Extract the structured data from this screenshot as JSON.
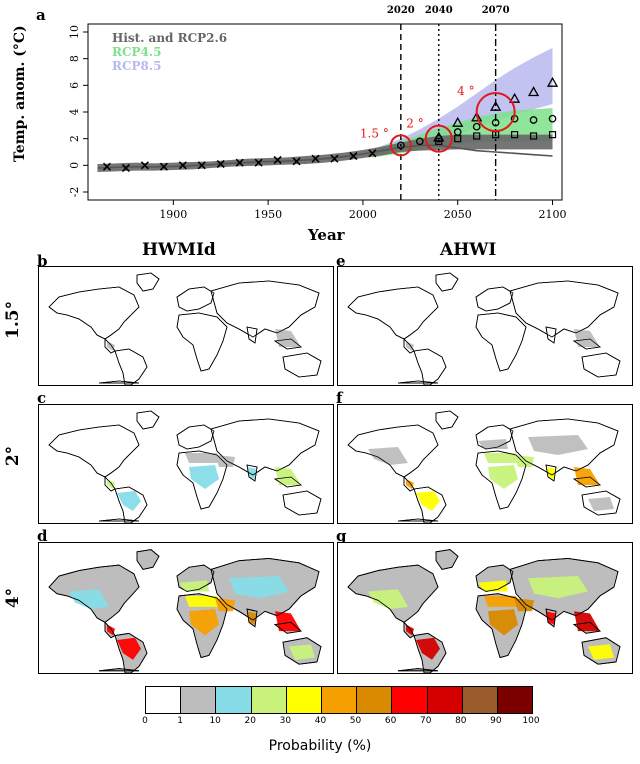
{
  "panel_labels": {
    "a": "a",
    "b": "b",
    "c": "c",
    "d": "d",
    "e": "e",
    "f": "f",
    "g": "g"
  },
  "column_titles": {
    "left": "HWMId",
    "right": "AHWI"
  },
  "row_titles": {
    "r1": "1.5°",
    "r2": "2°",
    "r3": "4°"
  },
  "chart_data": {
    "type": "line",
    "xlabel": "Year",
    "ylabel": "Temp. anom. (°C)",
    "xlim": [
      1855,
      2105
    ],
    "ylim": [
      -2.6,
      10.6
    ],
    "xticks": [
      1900,
      1950,
      2000,
      2050,
      2100
    ],
    "yticks": [
      -2,
      0,
      2,
      4,
      6,
      8,
      10
    ],
    "legend": {
      "placement": "top-left",
      "entries": [
        {
          "label": "Hist. and RCP2.6",
          "color": "#666666"
        },
        {
          "label": "RCP4.5",
          "color": "#7de08a"
        },
        {
          "label": "RCP8.5",
          "color": "#b8b8f0"
        }
      ]
    },
    "vlines": [
      {
        "x": 2020,
        "label": "2020",
        "style": "dashed"
      },
      {
        "x": 2040,
        "label": "2040",
        "style": "dotted"
      },
      {
        "x": 2070,
        "label": "2070",
        "style": "dashdot"
      }
    ],
    "circles": [
      {
        "x": 2020,
        "y": 1.5,
        "label": "1.5 °"
      },
      {
        "x": 2040,
        "y": 2.0,
        "label": "2 °"
      },
      {
        "x": 2070,
        "y": 4.0,
        "label": "4 °"
      }
    ],
    "series": [
      {
        "name": "Hist. and RCP2.6",
        "x": [
          1860,
          1870,
          1880,
          1890,
          1900,
          1910,
          1920,
          1930,
          1940,
          1950,
          1960,
          1970,
          1980,
          1990,
          2000,
          2010,
          2020,
          2030,
          2040,
          2050,
          2060,
          2070,
          2080,
          2090,
          2100
        ],
        "lower": [
          -0.5,
          -0.45,
          -0.4,
          -0.4,
          -0.35,
          -0.3,
          -0.2,
          -0.1,
          -0.05,
          0.0,
          0.05,
          0.1,
          0.2,
          0.35,
          0.55,
          0.75,
          1.0,
          1.1,
          1.15,
          1.2,
          1.2,
          1.2,
          1.2,
          1.2,
          1.2
        ],
        "upper": [
          0.1,
          0.15,
          0.2,
          0.15,
          0.2,
          0.25,
          0.3,
          0.4,
          0.5,
          0.55,
          0.6,
          0.7,
          0.8,
          0.95,
          1.15,
          1.4,
          1.7,
          2.0,
          2.2,
          2.3,
          2.3,
          2.3,
          2.3,
          2.3,
          2.3
        ],
        "mean": [
          -0.2,
          -0.15,
          -0.1,
          -0.12,
          -0.08,
          -0.02,
          0.05,
          0.15,
          0.22,
          0.28,
          0.32,
          0.4,
          0.5,
          0.65,
          0.85,
          1.1,
          1.35,
          1.5,
          1.5,
          1.3,
          1.1,
          1.0,
          0.9,
          0.8,
          0.7
        ]
      },
      {
        "name": "RCP4.5",
        "x": [
          2005,
          2020,
          2030,
          2040,
          2050,
          2060,
          2070,
          2080,
          2090,
          2100
        ],
        "lower": [
          0.6,
          0.9,
          1.2,
          1.4,
          1.6,
          1.7,
          1.8,
          1.8,
          1.8,
          1.8
        ],
        "upper": [
          1.2,
          1.8,
          2.3,
          2.8,
          3.2,
          3.6,
          3.9,
          4.1,
          4.2,
          4.3
        ]
      },
      {
        "name": "RCP8.5",
        "x": [
          2005,
          2020,
          2030,
          2040,
          2050,
          2060,
          2070,
          2080,
          2090,
          2100
        ],
        "lower": [
          0.6,
          1.0,
          1.4,
          1.8,
          2.3,
          2.8,
          3.3,
          3.8,
          4.2,
          4.6
        ],
        "upper": [
          1.2,
          2.0,
          2.7,
          3.5,
          4.4,
          5.4,
          6.4,
          7.3,
          8.1,
          8.8
        ]
      }
    ],
    "markers": {
      "cross": {
        "x": [
          1865,
          1875,
          1885,
          1895,
          1905,
          1915,
          1925,
          1935,
          1945,
          1955,
          1965,
          1975,
          1985,
          1995,
          2005
        ],
        "y": [
          -0.1,
          -0.2,
          0.0,
          -0.1,
          0.0,
          0.0,
          0.1,
          0.2,
          0.2,
          0.4,
          0.3,
          0.5,
          0.5,
          0.7,
          0.9
        ]
      },
      "triangle": {
        "x": [
          2040,
          2050,
          2060,
          2070,
          2080,
          2090,
          2100
        ],
        "y": [
          2.1,
          3.2,
          3.6,
          4.4,
          5.0,
          5.5,
          6.2
        ]
      },
      "circle": {
        "x": [
          2020,
          2030,
          2040,
          2050,
          2060,
          2070,
          2080,
          2090,
          2100
        ],
        "y": [
          1.5,
          1.8,
          2.0,
          2.5,
          2.9,
          3.2,
          3.5,
          3.4,
          3.5
        ]
      },
      "square": {
        "x": [
          2040,
          2050,
          2060,
          2070,
          2080,
          2090,
          2100
        ],
        "y": [
          1.8,
          2.0,
          2.2,
          2.3,
          2.3,
          2.2,
          2.3
        ]
      }
    }
  },
  "colorbar": {
    "label": "Probability (%)",
    "ticks": [
      "0",
      "1",
      "10",
      "20",
      "30",
      "40",
      "50",
      "60",
      "70",
      "80",
      "90",
      "100"
    ],
    "colors": [
      "#ffffff",
      "#bdbdbd",
      "#86dde8",
      "#c8f27a",
      "#ffff00",
      "#f5a000",
      "#d98a00",
      "#ff0000",
      "#d40000",
      "#9a5a2a",
      "#7a0000"
    ]
  }
}
